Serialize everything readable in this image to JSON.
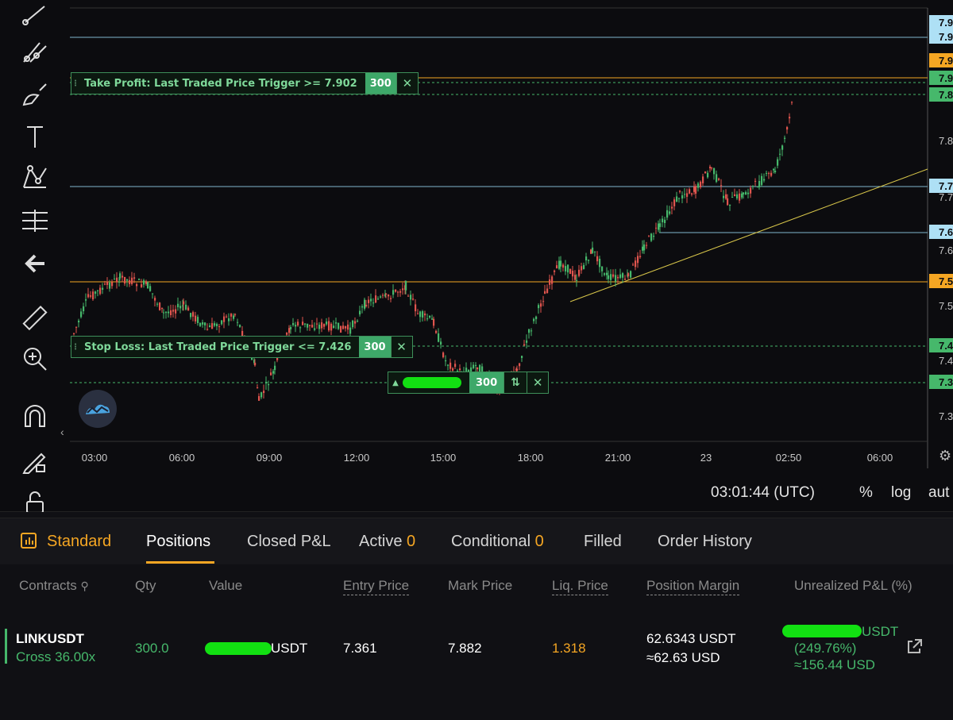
{
  "toolbar": {
    "tools": [
      "trend-line-icon",
      "fib-retracement-icon",
      "brush-icon",
      "text-icon",
      "pattern-icon",
      "measure-lines-icon",
      "back-arrow-icon",
      "ruler-icon",
      "zoom-in-icon",
      "magnet-icon",
      "lock-drawing-icon",
      "unlock-icon"
    ]
  },
  "chart": {
    "orders": {
      "take_profit": {
        "label": "Take Profit: Last Traded Price Trigger >= 7.902",
        "qty": "300"
      },
      "stop_loss": {
        "label": "Stop Loss: Last Traded Price Trigger <= 7.426",
        "qty": "300"
      },
      "position": {
        "qty": "300"
      }
    },
    "price_axis": {
      "badges": [
        {
          "text": "7.9",
          "color": "#aee0f5"
        },
        {
          "text": "7.9",
          "color": "#aee0f5"
        },
        {
          "text": "7.9",
          "color": "#f5a623"
        },
        {
          "text": "7.9",
          "color": "#46b86b"
        },
        {
          "text": "7.8",
          "color": "#46b86b"
        },
        {
          "text": "7.7",
          "color": "#aee0f5"
        },
        {
          "text": "7.6",
          "color": "#aee0f5"
        },
        {
          "text": "7.5",
          "color": "#f5a623"
        },
        {
          "text": "7.4",
          "color": "#46b86b"
        },
        {
          "text": "7.3",
          "color": "#46b86b"
        }
      ],
      "ticks": [
        "7.8",
        "7.7",
        "7.6",
        "7.5",
        "7.4",
        "7.3"
      ]
    },
    "time_axis": [
      "03:00",
      "06:00",
      "09:00",
      "12:00",
      "15:00",
      "18:00",
      "21:00",
      "23",
      "02:50",
      "06:00"
    ],
    "footer": {
      "clock": "03:01:44 (UTC)",
      "percent": "%",
      "log": "log",
      "auto": "aut"
    }
  },
  "tabs": {
    "standard": "Standard",
    "positions": "Positions",
    "closed_pnl": "Closed P&L",
    "active": "Active",
    "active_count": "0",
    "conditional": "Conditional",
    "conditional_count": "0",
    "filled": "Filled",
    "order_history": "Order History"
  },
  "table": {
    "headers": {
      "contracts": "Contracts",
      "qty": "Qty",
      "value": "Value",
      "entry_price": "Entry Price",
      "mark_price": "Mark Price",
      "liq_price": "Liq. Price",
      "position_margin": "Position Margin",
      "unrealized_pnl": "Unrealized P&L (%)"
    },
    "row": {
      "symbol": "LINKUSDT",
      "leverage": "Cross 36.00x",
      "qty": "300.0",
      "value_suffix": "USDT",
      "entry_price": "7.361",
      "mark_price": "7.882",
      "liq_price": "1.318",
      "margin_usdt": "62.6343 USDT",
      "margin_usd": "≈62.63 USD",
      "pnl_suffix": "USDT",
      "pnl_pct": "(249.76%)",
      "pnl_usd": "≈156.44 USD"
    }
  },
  "colors": {
    "up": "#46b86b",
    "down": "#e0554e",
    "accent": "#f5a623",
    "line_blue": "#7fb6cc",
    "trend_line": "#d8c64a"
  }
}
